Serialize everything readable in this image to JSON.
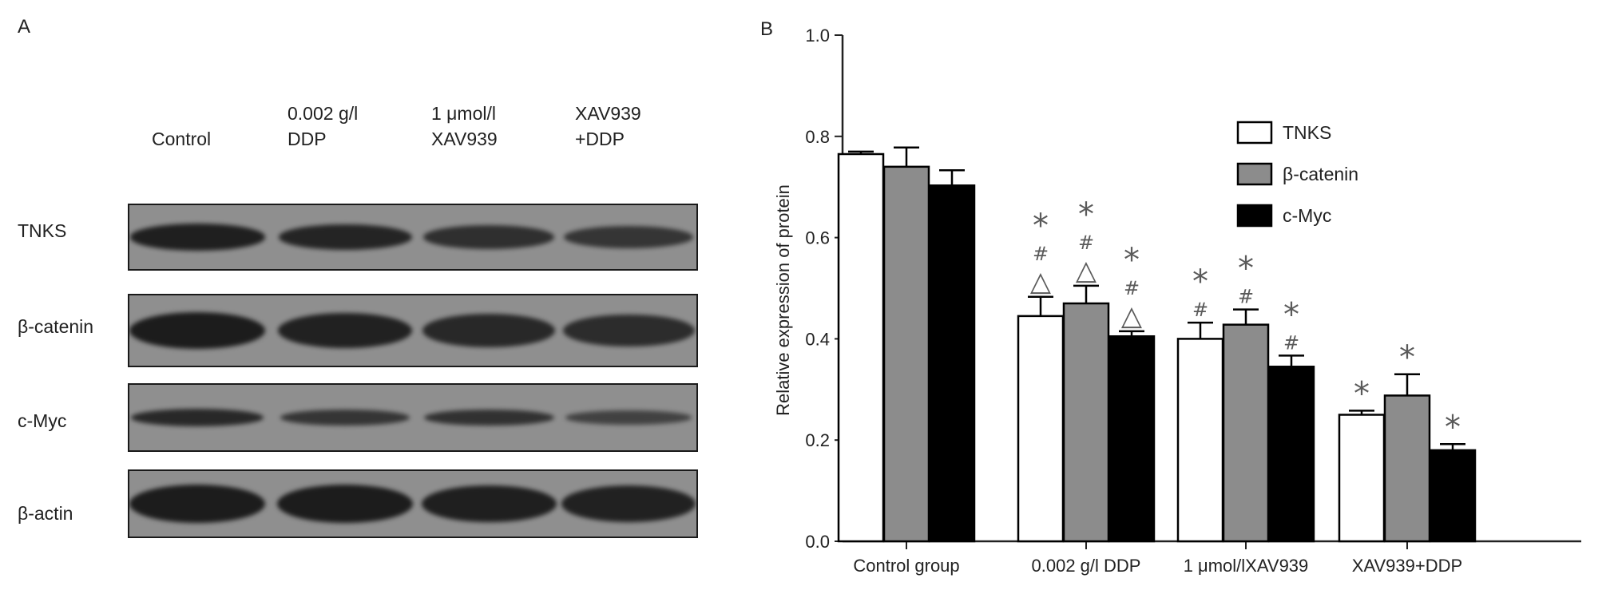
{
  "panel_a": {
    "label": "A",
    "lanes": [
      "Control",
      "0.002 g/l\nDDP",
      "1 μmol/l\nXAV939",
      "XAV939\n+DDP"
    ],
    "rows": [
      "TNKS",
      "β-catenin",
      "c-Myc",
      "β-actin"
    ],
    "band_intensity": [
      [
        0.95,
        0.85,
        0.7,
        0.6
      ],
      [
        1.0,
        0.9,
        0.8,
        0.75
      ],
      [
        0.8,
        0.6,
        0.65,
        0.4
      ],
      [
        1.0,
        1.0,
        0.95,
        0.9
      ]
    ]
  },
  "chart_data": {
    "panel_label": "B",
    "type": "bar",
    "title": "",
    "xlabel": "",
    "ylabel": "Relative expression of protein",
    "ylim": [
      0.0,
      1.0
    ],
    "yticks": [
      "0.0",
      "0.2",
      "0.4",
      "0.6",
      "0.8",
      "1.0"
    ],
    "categories": [
      "Control group",
      "0.002 g/l DDP",
      "1 μmol/lXAV939",
      "XAV939+DDP"
    ],
    "legend_position": "top-right",
    "grid": false,
    "series": [
      {
        "name": "TNKS",
        "fill": "#ffffff",
        "values": [
          0.765,
          0.445,
          0.4,
          0.25
        ],
        "errors": [
          0.005,
          0.038,
          0.032,
          0.008
        ]
      },
      {
        "name": "β-catenin",
        "fill": "#8c8c8c",
        "values": [
          0.74,
          0.47,
          0.428,
          0.288
        ],
        "errors": [
          0.038,
          0.035,
          0.03,
          0.042
        ]
      },
      {
        "name": "c-Myc",
        "fill": "#000000",
        "values": [
          0.703,
          0.405,
          0.345,
          0.18
        ],
        "errors": [
          0.03,
          0.01,
          0.022,
          0.012
        ]
      }
    ],
    "annotations": [
      [
        [],
        [],
        []
      ],
      [
        [
          "*",
          "#",
          "△"
        ],
        [
          "*",
          "#",
          "△"
        ],
        [
          "*",
          "#",
          "△"
        ]
      ],
      [
        [
          "*",
          "#"
        ],
        [
          "*",
          "#"
        ],
        [
          "*",
          "#"
        ]
      ],
      [
        [
          "*"
        ],
        [
          "*"
        ],
        [
          "*"
        ]
      ]
    ]
  }
}
